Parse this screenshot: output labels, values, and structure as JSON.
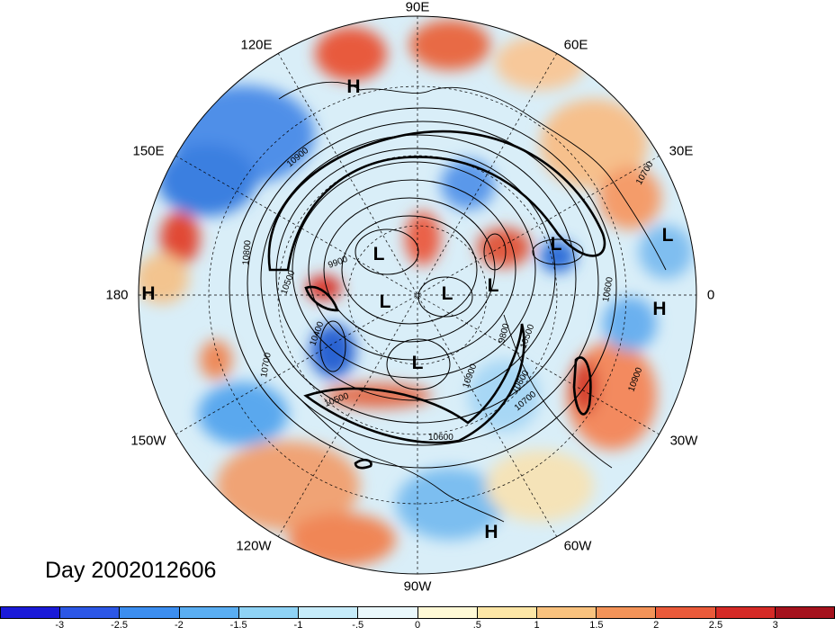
{
  "longitude_labels": {
    "n90e": "90E",
    "n120e": "120E",
    "n60e": "60E",
    "n150e": "150E",
    "n30e": "30E",
    "n180": "180",
    "n0": "0",
    "n150w": "150W",
    "n30w": "30W",
    "n120w": "120W",
    "n60w": "60W",
    "n90w": "90W"
  },
  "day_label": "Day 2002012606",
  "centers": [
    "H",
    "L",
    "H",
    "L",
    "L",
    "L",
    "L",
    "L",
    "L",
    "H",
    "H"
  ],
  "contour_labels": [
    "10900",
    "9900",
    "10500",
    "10600",
    "10400",
    "10700",
    "10500",
    "10600",
    "9800",
    "10500",
    "10600",
    "10800",
    "10900",
    "10700",
    "10900",
    "10700"
  ],
  "colorbar": {
    "colors": [
      "#1a1ad8",
      "#2c57e6",
      "#3c8ef0",
      "#5aaef2",
      "#8fd3f5",
      "#c6ecfa",
      "#eaf8fc",
      "#fff9d6",
      "#fde6a6",
      "#f9c27e",
      "#f39358",
      "#ea5a3a",
      "#d52a26",
      "#a5121d"
    ],
    "ticks": [
      "-3",
      "-2.5",
      "-2",
      "-1.5",
      "-1",
      "-.5",
      "0",
      ".5",
      "1",
      "1.5",
      "2",
      "2.5",
      "3"
    ]
  }
}
